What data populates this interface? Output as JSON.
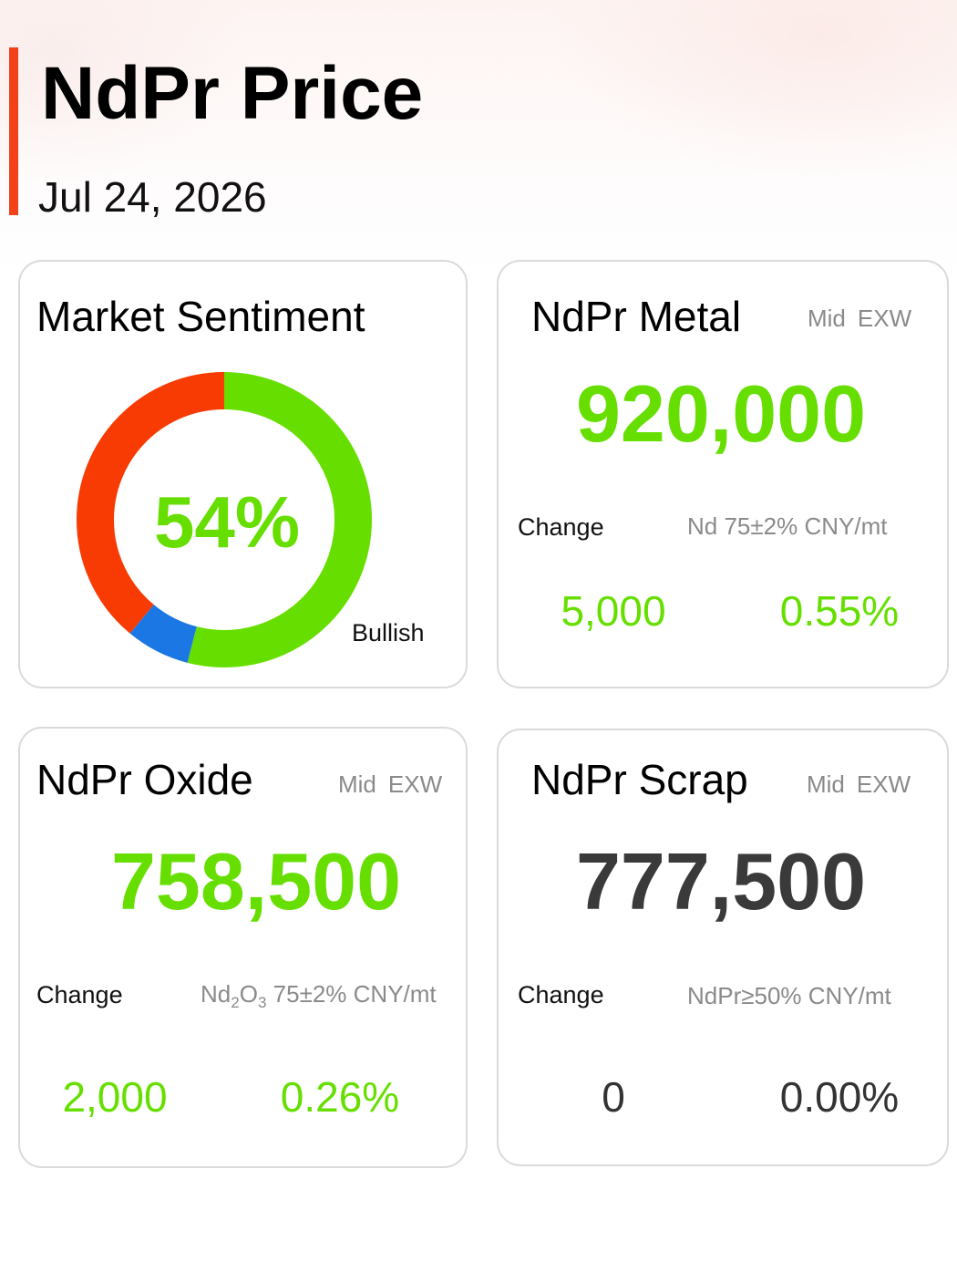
{
  "header": {
    "title": "NdPr Price",
    "date": "Jul 24, 2026",
    "accent_color": "#f1421a"
  },
  "sentiment": {
    "title": "Market Sentiment",
    "value": "54%",
    "label": "Bullish",
    "value_color": "#66df00",
    "segments": [
      {
        "value": 54,
        "color": "#66df00"
      },
      {
        "value": 7,
        "color": "#1a77e3"
      },
      {
        "value": 39,
        "color": "#f73b02"
      }
    ]
  },
  "cards": {
    "metal": {
      "title": "NdPr Metal",
      "price_type": "Mid",
      "delivery": "EXW",
      "price": "920,000",
      "price_color": "#66df00",
      "change_label": "Change",
      "spec": "Nd 75±2% CNY/mt",
      "change": "5,000",
      "change_pct": "0.55%",
      "change_color": "#66df00"
    },
    "oxide": {
      "title": "NdPr Oxide",
      "price_type": "Mid",
      "delivery": "EXW",
      "price": "758,500",
      "price_color": "#66df00",
      "change_label": "Change",
      "spec_parts": [
        "Nd",
        "2",
        "O",
        "3",
        " 75±2% CNY/mt"
      ],
      "change": "2,000",
      "change_pct": "0.26%",
      "change_color": "#66df00"
    },
    "scrap": {
      "title": "NdPr Scrap",
      "price_type": "Mid",
      "delivery": "EXW",
      "price": "777,500",
      "price_color": "#3a3a3a",
      "change_label": "Change",
      "spec": "NdPr≥50% CNY/mt",
      "change": "0",
      "change_pct": "0.00%",
      "change_color": "#333333"
    }
  }
}
